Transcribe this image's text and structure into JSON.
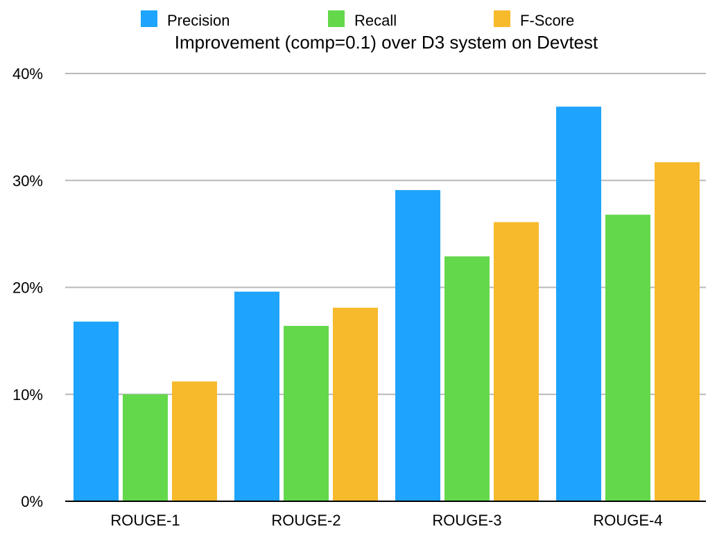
{
  "chart_data": {
    "type": "bar",
    "title": "Improvement (comp=0.1) over D3 system on Devtest",
    "xlabel": "",
    "ylabel": "",
    "categories": [
      "ROUGE-1",
      "ROUGE-2",
      "ROUGE-3",
      "ROUGE-4"
    ],
    "series": [
      {
        "name": "Precision",
        "color": "#1ea4fc",
        "values": [
          16.8,
          19.6,
          29.1,
          36.9
        ]
      },
      {
        "name": "Recall",
        "color": "#64d84b",
        "values": [
          10.0,
          16.4,
          22.9,
          26.8
        ]
      },
      {
        "name": "F-Score",
        "color": "#f7ba2c",
        "values": [
          11.2,
          18.1,
          26.1,
          31.7
        ]
      }
    ],
    "ylim": [
      0,
      40
    ],
    "yticks": [
      0,
      10,
      20,
      30,
      40
    ],
    "ytick_labels": [
      "0%",
      "10%",
      "20%",
      "30%",
      "40%"
    ],
    "grid": true,
    "legend_position": "top"
  }
}
